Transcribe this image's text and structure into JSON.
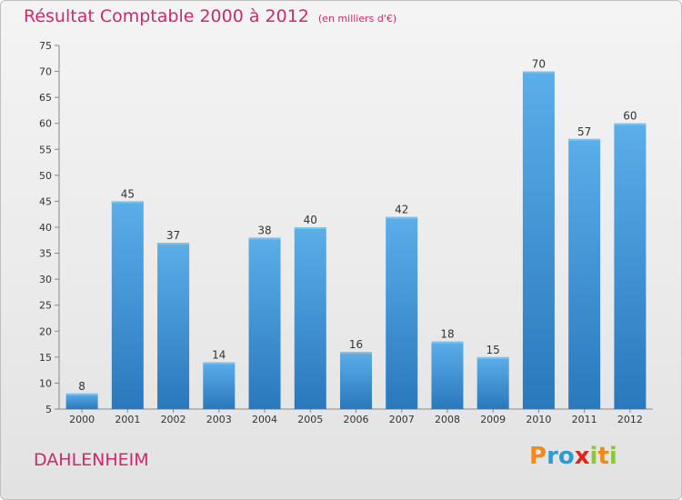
{
  "title": "Résultat Comptable 2000 à 2012",
  "unit_note": "(en milliers d'€)",
  "place": "DAHLENHEIM",
  "logo": {
    "letters": [
      "P",
      "r",
      "o",
      "x",
      "i",
      "t",
      "i"
    ],
    "colors": [
      "#f08a1c",
      "#2f9bd6",
      "#2f9bd6",
      "#e2231a",
      "#8cc63e",
      "#f08a1c",
      "#8cc63e"
    ]
  },
  "colors": {
    "bar": "#3d8fd5",
    "title": "#cc2a6c"
  },
  "chart_data": {
    "type": "bar",
    "title": "Résultat Comptable 2000 à 2012",
    "categories": [
      "2000",
      "2001",
      "2002",
      "2003",
      "2004",
      "2005",
      "2006",
      "2007",
      "2008",
      "2009",
      "2010",
      "2011",
      "2012"
    ],
    "values": [
      8,
      45,
      37,
      14,
      38,
      40,
      16,
      42,
      18,
      15,
      70,
      57,
      60
    ],
    "ylim": [
      5,
      75
    ],
    "yticks": [
      5,
      10,
      15,
      20,
      25,
      30,
      35,
      40,
      45,
      50,
      55,
      60,
      65,
      70,
      75
    ],
    "grid": false,
    "data_labels": true
  }
}
